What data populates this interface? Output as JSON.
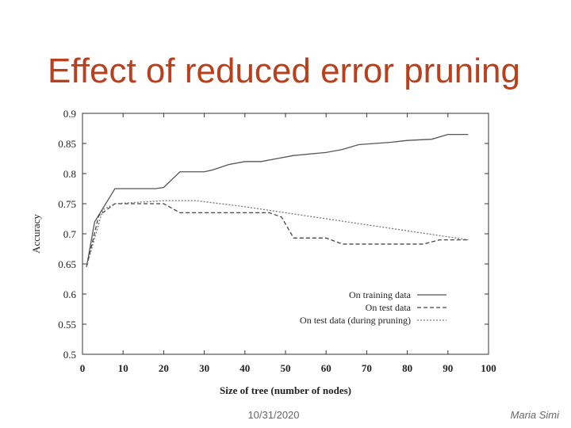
{
  "chart_data": {
    "type": "line",
    "title": "Effect of reduced error pruning",
    "xlabel": "Size of tree (number of nodes)",
    "ylabel": "Accuracy",
    "xlim": [
      0,
      100
    ],
    "xticks": [
      0,
      10,
      20,
      30,
      40,
      50,
      60,
      70,
      80,
      90,
      100
    ],
    "ylim": [
      0.5,
      0.9
    ],
    "yticks": [
      0.5,
      0.55,
      0.6,
      0.65,
      0.7,
      0.75,
      0.8,
      0.85,
      0.9
    ],
    "legend": "lower right",
    "series": [
      {
        "name": "On training data",
        "color": "#555555",
        "linestyle": "solid",
        "x": [
          1,
          3,
          8,
          18,
          20,
          24,
          30,
          32,
          36,
          40,
          44,
          48,
          52,
          60,
          64,
          68,
          76,
          80,
          86,
          90,
          95
        ],
        "values": [
          0.645,
          0.72,
          0.775,
          0.775,
          0.777,
          0.803,
          0.803,
          0.806,
          0.815,
          0.82,
          0.82,
          0.825,
          0.83,
          0.835,
          0.84,
          0.848,
          0.852,
          0.855,
          0.857,
          0.865,
          0.865
        ]
      },
      {
        "name": "On test data",
        "color": "#444444",
        "linestyle": "dashed",
        "x": [
          1,
          4,
          8,
          20,
          24,
          46,
          49,
          52,
          60,
          64,
          84,
          88,
          95
        ],
        "values": [
          0.645,
          0.73,
          0.75,
          0.75,
          0.735,
          0.735,
          0.728,
          0.693,
          0.693,
          0.683,
          0.683,
          0.69,
          0.69
        ]
      },
      {
        "name": "On test data (during pruning)",
        "color": "#777777",
        "linestyle": "dotted",
        "x": [
          1,
          5,
          8,
          20,
          28,
          40,
          60,
          80,
          95
        ],
        "values": [
          0.645,
          0.74,
          0.75,
          0.755,
          0.755,
          0.745,
          0.725,
          0.705,
          0.69
        ]
      }
    ]
  },
  "footer": {
    "date": "10/31/2020",
    "author": "Maria Simi"
  }
}
